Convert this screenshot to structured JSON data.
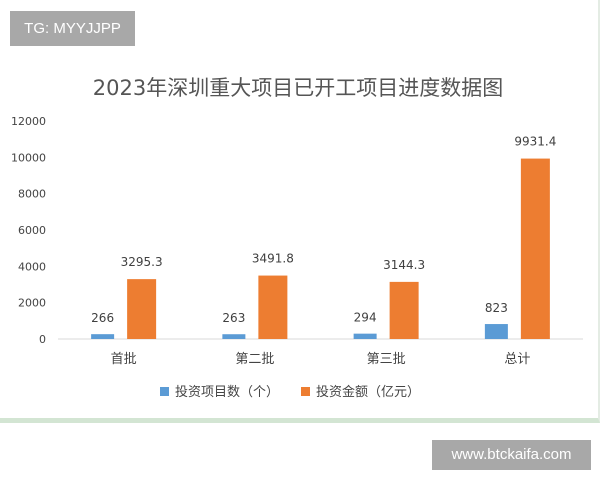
{
  "watermark_top": "TG: MYYJJPP",
  "watermark_bottom": "www.btckaifa.com",
  "chart_data": {
    "type": "bar",
    "title": "2023年深圳重大项目已开工项目进度数据图",
    "categories": [
      "首批",
      "第二批",
      "第三批",
      "总计"
    ],
    "series": [
      {
        "name": "投资项目数（个）",
        "values": [
          266,
          263,
          294,
          823
        ],
        "color": "#5b9bd5"
      },
      {
        "name": "投资金额（亿元）",
        "values": [
          3295.3,
          3491.8,
          3144.3,
          9931.4
        ],
        "color": "#ed7d31"
      }
    ],
    "ylim": [
      0,
      12000
    ],
    "yticks": [
      0,
      2000,
      4000,
      6000,
      8000,
      10000,
      12000
    ],
    "grid": false,
    "legend": "bottom",
    "data_labels": true
  }
}
